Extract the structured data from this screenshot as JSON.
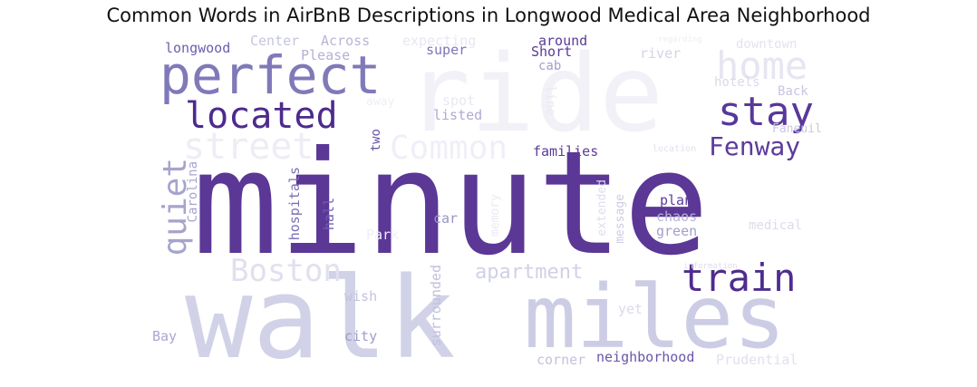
{
  "title": "Common Words in AirBnB Descriptions in Longwood Medical Area Neighborhood",
  "words": [
    {
      "text": "ride",
      "color": "#f2f1f8"
    },
    {
      "text": "walk",
      "color": "#d1d2e7"
    },
    {
      "text": "miles",
      "color": "#cccde5"
    },
    {
      "text": "minute",
      "color": "#5b3796"
    },
    {
      "text": "perfect",
      "color": "#8079b9"
    },
    {
      "text": "home",
      "color": "#e6e5f1"
    },
    {
      "text": "located",
      "color": "#4d2b8d"
    },
    {
      "text": "stay",
      "color": "#58389a"
    },
    {
      "text": "street",
      "color": "#ededf5"
    },
    {
      "text": "Common",
      "color": "#f0eff7"
    },
    {
      "text": "Fenway",
      "color": "#5d3a9b"
    },
    {
      "text": "train",
      "color": "#4e2c8f"
    },
    {
      "text": "Boston",
      "color": "#e1e0ef"
    },
    {
      "text": "apartment",
      "color": "#d0d1e6"
    },
    {
      "text": "quiet",
      "color": "#a6a4cd"
    },
    {
      "text": "longwood",
      "color": "#6d5cae"
    },
    {
      "text": "Center",
      "color": "#c5c5e0"
    },
    {
      "text": "Across",
      "color": "#b8b5d8"
    },
    {
      "text": "Please",
      "color": "#b4b1d6"
    },
    {
      "text": "super",
      "color": "#7e74b6"
    },
    {
      "text": "around",
      "color": "#5a3a99"
    },
    {
      "text": "Short",
      "color": "#5a3a99"
    },
    {
      "text": "cab",
      "color": "#a29fcb"
    },
    {
      "text": "expecting",
      "color": "#e8e7f2"
    },
    {
      "text": "regarding",
      "color": "#ededf5"
    },
    {
      "text": "downtown",
      "color": "#e4e3f0"
    },
    {
      "text": "river",
      "color": "#d3d3e8"
    },
    {
      "text": "hotels",
      "color": "#d9d8ea"
    },
    {
      "text": "Back",
      "color": "#c7c6e1"
    },
    {
      "text": "spot",
      "color": "#e9e8f2"
    },
    {
      "text": "away",
      "color": "#eeeef6"
    },
    {
      "text": "listed",
      "color": "#aeaad3"
    },
    {
      "text": "line",
      "color": "#ebeaf4"
    },
    {
      "text": "Faneuil",
      "color": "#c9c8e2"
    },
    {
      "text": "location",
      "color": "#e2e1f0"
    },
    {
      "text": "families",
      "color": "#5d3b99"
    },
    {
      "text": "two",
      "color": "#6a57a9"
    },
    {
      "text": "Carolina",
      "color": "#a8a5cf"
    },
    {
      "text": "hospitals",
      "color": "#7a6eb4"
    },
    {
      "text": "hall",
      "color": "#6f5fae"
    },
    {
      "text": "car",
      "color": "#9a94c6"
    },
    {
      "text": "Park",
      "color": "#f0eff7"
    },
    {
      "text": "memory",
      "color": "#ebeaf4"
    },
    {
      "text": "extended",
      "color": "#dedded"
    },
    {
      "text": "message",
      "color": "#ccccE4"
    },
    {
      "text": "plan",
      "color": "#5c3c9a"
    },
    {
      "text": "chaos",
      "color": "#b7b4d7"
    },
    {
      "text": "green",
      "color": "#a29fcb"
    },
    {
      "text": "medical",
      "color": "#dcdbec"
    },
    {
      "text": "information",
      "color": "#dedeee"
    },
    {
      "text": "wish",
      "color": "#c3c2df"
    },
    {
      "text": "yet",
      "color": "#dadaeb"
    },
    {
      "text": "Bay",
      "color": "#aaa6d0"
    },
    {
      "text": "city",
      "color": "#a09ccb"
    },
    {
      "text": "surrounded",
      "color": "#c2c1de"
    },
    {
      "text": "corner",
      "color": "#c3c2df"
    },
    {
      "text": "neighborhood",
      "color": "#6a56a8"
    },
    {
      "text": "Prudential",
      "color": "#e1e0ef"
    }
  ]
}
